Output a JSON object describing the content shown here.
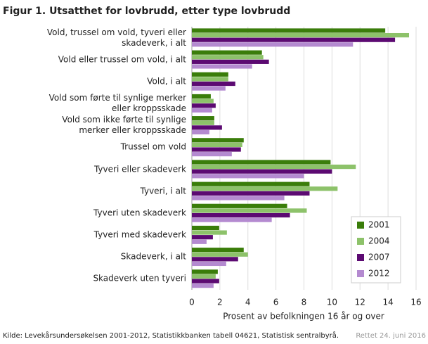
{
  "chart_data": {
    "type": "hbar",
    "title": "Figur 1. Utsatthet for lovbrudd, etter type lovbrudd",
    "categories": [
      "Vold, trussel om vold, tyveri eller skadeverk, i alt",
      "Vold eller trussel om vold, i alt",
      "Vold, i alt",
      "Vold som førte til synlige merker eller kroppsskade",
      "Vold som ikke førte til synlige merker eller kroppsskade",
      "Trussel om vold",
      "Tyveri eller skadeverk",
      "Tyveri, i alt",
      "Tyveri uten skadeverk",
      "Tyveri med skadeverk",
      "Skadeverk, i alt",
      "Skadeverk uten tyveri"
    ],
    "series": [
      {
        "name": "2001",
        "color": "#3a7d0a",
        "values": [
          13.8,
          5.0,
          2.6,
          1.35,
          1.6,
          3.7,
          9.9,
          8.4,
          6.8,
          1.95,
          3.7,
          1.85
        ]
      },
      {
        "name": "2004",
        "color": "#8dc26a",
        "values": [
          15.5,
          5.1,
          2.6,
          1.55,
          1.6,
          3.6,
          11.7,
          10.4,
          8.2,
          2.5,
          4.0,
          1.7
        ]
      },
      {
        "name": "2007",
        "color": "#5c0a72",
        "values": [
          14.5,
          5.5,
          3.1,
          1.7,
          2.15,
          3.5,
          10.0,
          8.4,
          7.0,
          1.5,
          3.3,
          1.95
        ]
      },
      {
        "name": "2012",
        "color": "#b48ad0",
        "values": [
          11.5,
          4.3,
          2.4,
          1.45,
          1.25,
          2.85,
          8.0,
          6.6,
          5.7,
          1.05,
          2.45,
          1.55
        ]
      }
    ],
    "xlabel": "Prosent av befolkningen  16 år og over",
    "xlim": [
      0,
      16
    ],
    "xticks": [
      0,
      2,
      4,
      6,
      8,
      10,
      12,
      14,
      16
    ],
    "grid": true,
    "legend": "lower right",
    "source": "Kilde: Levekårsundersøkelsen 2001-2012, Statistikkbanken tabell 04621, Statistisk sentralbyrå.",
    "note": "Rettet 24. juni 2016"
  }
}
